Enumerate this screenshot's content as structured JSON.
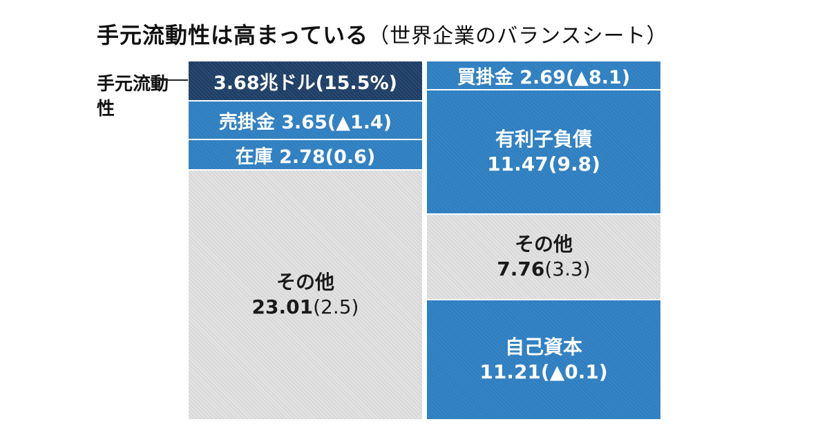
{
  "title": {
    "main": "手元流動性は高まっている",
    "sub": "（世界企業のバランスシート）"
  },
  "assets_label": "手元流動性",
  "assets": [
    {
      "name": "",
      "value": "3.68兆ドル",
      "change": "(15.5%)",
      "color": "#1e3e66"
    },
    {
      "name": "売掛金",
      "value": "3.65",
      "change": "(▲1.4)",
      "color": "#2f7fc1"
    },
    {
      "name": "在庫",
      "value": "2.78",
      "change": "(0.6)",
      "color": "#2f7fc1"
    },
    {
      "name": "その他",
      "value": "23.01",
      "change": "(2.5)",
      "color": "#e2e2e2"
    }
  ],
  "liabilities": [
    {
      "name": "買掛金",
      "value": "2.69",
      "change": "(▲8.1)",
      "color": "#2f7fc1"
    },
    {
      "name": "有利子負債",
      "value": "11.47",
      "change": "(9.8)",
      "color": "#2f7fc1"
    },
    {
      "name": "その他",
      "value": "7.76",
      "change": "(3.3)",
      "color": "#e2e2e2"
    },
    {
      "name": "自己資本",
      "value": "11.21",
      "change": "(▲0.1)",
      "color": "#2f7fc1"
    }
  ]
}
